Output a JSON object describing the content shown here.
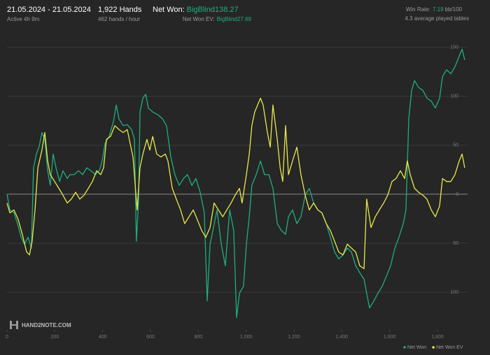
{
  "header": {
    "date_range": "21.05.2024 - 21.05.2024",
    "active": "Active 4h 9m",
    "hands": "1,922 Hands",
    "hands_per_hour": "462 hands / hour",
    "net_won_label": "Net Won:",
    "net_won_value": "BigBlind138.27",
    "net_won_ev_label": "Net Won  EV:",
    "net_won_ev_value": "BigBlind27.69",
    "win_rate_label": "Win Rate:",
    "win_rate_value": "7.19",
    "win_rate_unit": "bb/100",
    "tables": "4.3 average played tables"
  },
  "logo": "HAND2NOTE.COM",
  "chart_data": {
    "type": "line",
    "xlim": [
      0,
      1926
    ],
    "ylim": [
      -137,
      159
    ],
    "xticks": [
      0,
      200,
      400,
      600,
      800,
      {
        "value": 1000,
        "label": "1,000"
      },
      {
        "value": 1200,
        "label": "1,200"
      },
      {
        "value": 1400,
        "label": "1,400"
      },
      {
        "value": 1600,
        "label": "1,600"
      },
      {
        "value": 1800,
        "label": "1,800"
      }
    ],
    "yticks": [
      {
        "value": -100,
        "label": "100"
      },
      {
        "value": -50,
        "label": "50"
      },
      0,
      50,
      100,
      150
    ],
    "grid": true,
    "legend": "bottom-right",
    "series": [
      {
        "name": "Net Won",
        "color": "#1fae7e",
        "x": [
          0,
          12,
          29,
          44,
          59,
          73,
          88,
          102,
          111,
          123,
          135,
          146,
          158,
          170,
          181,
          193,
          205,
          220,
          234,
          252,
          263,
          281,
          299,
          316,
          334,
          351,
          369,
          386,
          398,
          410,
          427,
          445,
          457,
          468,
          486,
          503,
          521,
          533,
          541,
          550,
          556,
          568,
          580,
          591,
          609,
          632,
          650,
          667,
          685,
          702,
          720,
          738,
          755,
          773,
          790,
          808,
          825,
          837,
          849,
          861,
          878,
          896,
          913,
          931,
          948,
          960,
          972,
          989,
          1001,
          1013,
          1024,
          1042,
          1060,
          1077,
          1095,
          1112,
          1130,
          1147,
          1165,
          1177,
          1194,
          1212,
          1229,
          1247,
          1264,
          1282,
          1300,
          1317,
          1335,
          1352,
          1370,
          1387,
          1405,
          1423,
          1440,
          1458,
          1475,
          1493,
          1504,
          1516,
          1534,
          1551,
          1569,
          1586,
          1604,
          1622,
          1639,
          1657,
          1668,
          1680,
          1692,
          1704,
          1721,
          1739,
          1756,
          1774,
          1791,
          1809,
          1821,
          1838,
          1856,
          1873,
          1891,
          1903,
          1914
        ],
        "values": [
          0,
          -16,
          -19,
          -30,
          -44,
          -51,
          -44,
          -55,
          27,
          41,
          49,
          63,
          56,
          24,
          9,
          41,
          27,
          13,
          24,
          16,
          20,
          20,
          24,
          20,
          27,
          24,
          20,
          24,
          34,
          52,
          59,
          74,
          91,
          77,
          70,
          71,
          66,
          56,
          -48,
          -9,
          84,
          98,
          102,
          88,
          84,
          81,
          77,
          70,
          38,
          20,
          9,
          16,
          20,
          9,
          16,
          2,
          -19,
          -109,
          -51,
          -37,
          -16,
          -51,
          -73,
          -16,
          -37,
          -126,
          -101,
          -94,
          -51,
          -23,
          9,
          20,
          34,
          20,
          20,
          6,
          -30,
          -37,
          -41,
          -23,
          -16,
          -30,
          -23,
          -1,
          6,
          -9,
          -16,
          -19,
          -30,
          -44,
          -59,
          -66,
          -62,
          -55,
          -59,
          -73,
          -80,
          -87,
          -101,
          -116,
          -109,
          -101,
          -94,
          -84,
          -73,
          -55,
          -44,
          -30,
          -16,
          77,
          106,
          116,
          109,
          106,
          98,
          95,
          88,
          98,
          120,
          127,
          123,
          130,
          141,
          148,
          137
        ]
      },
      {
        "name": "Net Won  EV",
        "color": "#e8e84c",
        "x": [
          0,
          12,
          29,
          47,
          64,
          82,
          94,
          105,
          117,
          129,
          146,
          158,
          170,
          181,
          199,
          217,
          234,
          252,
          269,
          287,
          304,
          322,
          340,
          357,
          375,
          392,
          404,
          416,
          433,
          451,
          468,
          486,
          503,
          515,
          527,
          544,
          556,
          568,
          585,
          597,
          609,
          626,
          644,
          662,
          673,
          691,
          708,
          726,
          743,
          761,
          779,
          796,
          814,
          831,
          849,
          866,
          884,
          902,
          919,
          937,
          954,
          972,
          983,
          1001,
          1013,
          1024,
          1036,
          1048,
          1060,
          1071,
          1089,
          1101,
          1112,
          1130,
          1142,
          1153,
          1165,
          1177,
          1194,
          1212,
          1229,
          1247,
          1264,
          1282,
          1300,
          1317,
          1335,
          1352,
          1370,
          1387,
          1405,
          1423,
          1440,
          1458,
          1475,
          1493,
          1504,
          1522,
          1540,
          1557,
          1575,
          1592,
          1610,
          1627,
          1645,
          1663,
          1674,
          1686,
          1704,
          1721,
          1739,
          1756,
          1774,
          1791,
          1809,
          1821,
          1838,
          1856,
          1873,
          1891,
          1903,
          1914
        ],
        "values": [
          -9,
          -19,
          -16,
          -26,
          -41,
          -59,
          -62,
          -48,
          -16,
          27,
          45,
          63,
          34,
          20,
          13,
          6,
          -1,
          -9,
          -5,
          2,
          -5,
          -1,
          6,
          13,
          24,
          20,
          27,
          56,
          59,
          70,
          66,
          63,
          66,
          52,
          38,
          -16,
          27,
          41,
          56,
          45,
          59,
          41,
          38,
          41,
          34,
          6,
          -5,
          -16,
          -30,
          -23,
          -16,
          -26,
          -37,
          -44,
          -34,
          -9,
          -16,
          -23,
          -16,
          -9,
          -1,
          6,
          -9,
          20,
          41,
          70,
          84,
          91,
          98,
          91,
          63,
          48,
          91,
          56,
          27,
          13,
          70,
          20,
          34,
          48,
          20,
          -1,
          -16,
          -9,
          -16,
          -19,
          -30,
          -37,
          -48,
          -59,
          -62,
          -51,
          -55,
          -59,
          -73,
          -76,
          -5,
          -34,
          -23,
          -16,
          -9,
          -1,
          13,
          16,
          24,
          16,
          34,
          20,
          6,
          2,
          -1,
          -5,
          -16,
          -23,
          -12,
          16,
          13,
          13,
          20,
          34,
          41,
          27
        ]
      }
    ]
  }
}
